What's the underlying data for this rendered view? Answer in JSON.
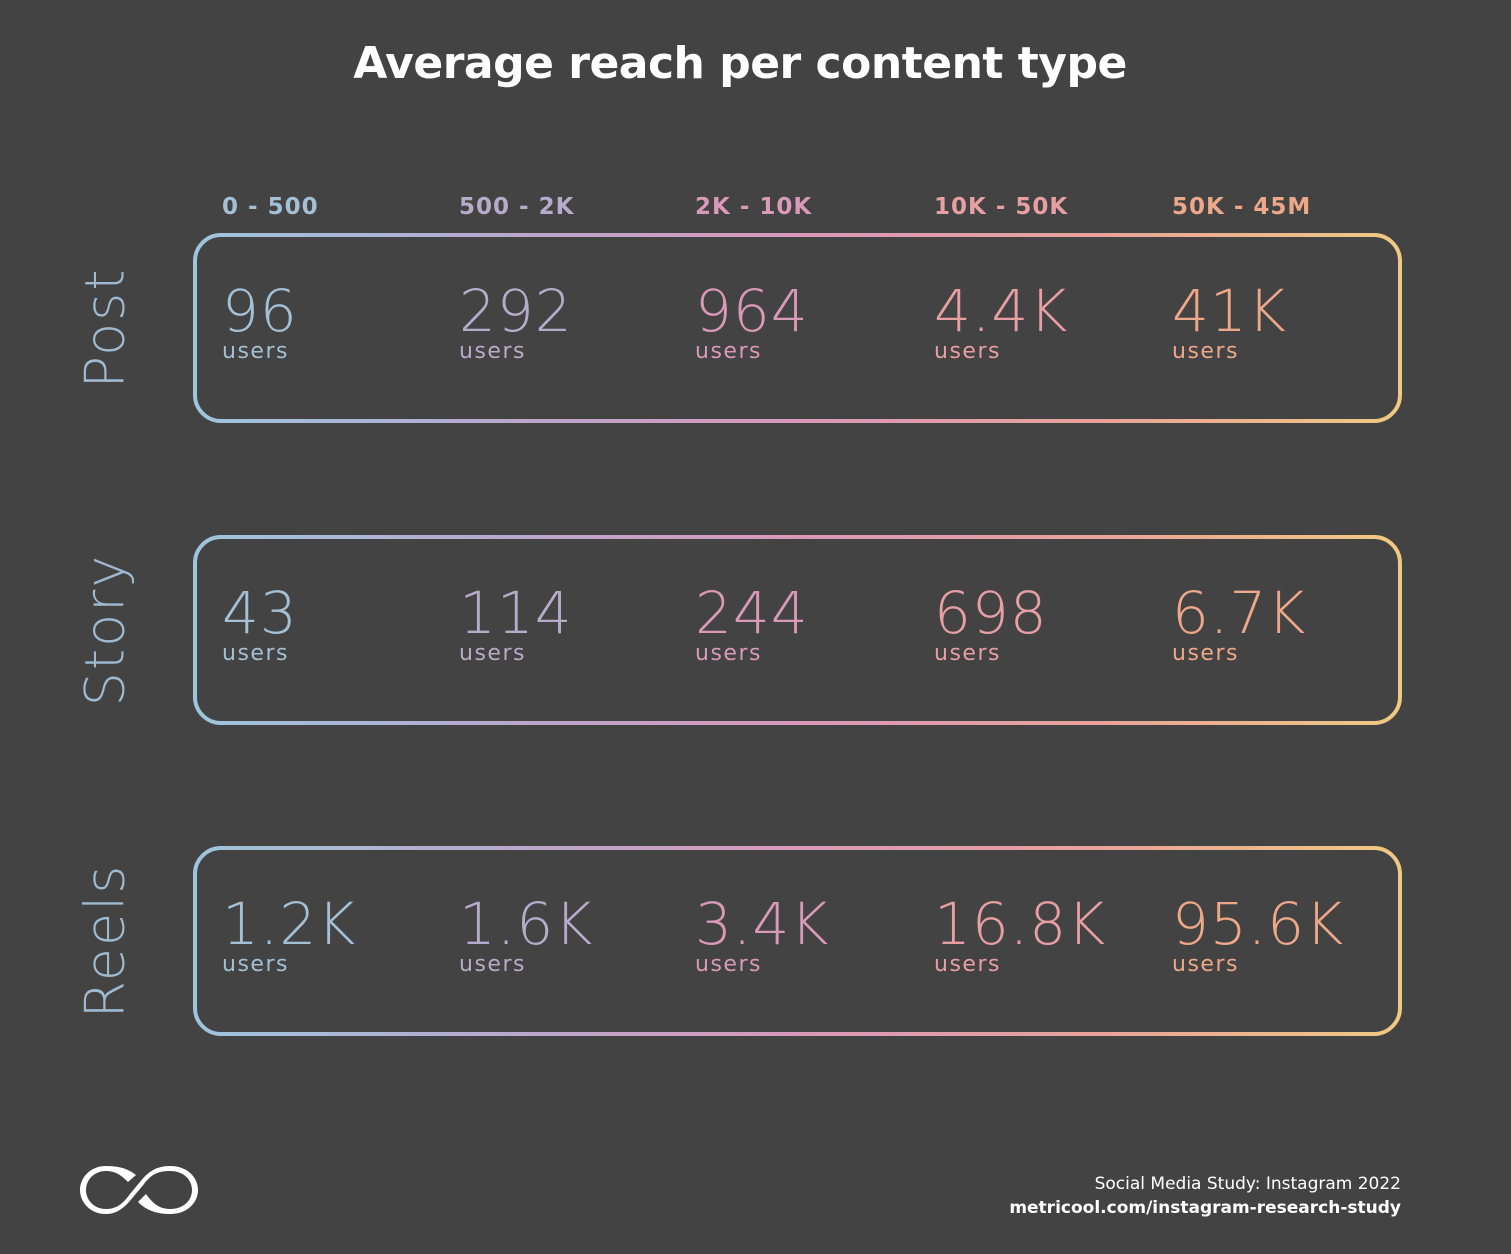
{
  "title": "Average reach per content type",
  "colors": {
    "background": "#434343",
    "gradient": [
      "#9ec5dd",
      "#b7a9cf",
      "#d998ba",
      "#e9a29a",
      "#f0c981"
    ],
    "row_label": "#9fbad0"
  },
  "chart_data": {
    "type": "table",
    "title": "Average reach per content type",
    "columns": [
      "0 - 500",
      "500 - 2K",
      "2K - 10K",
      "10K - 50K",
      "50K - 45M"
    ],
    "column_colors": [
      "#a3c0d4",
      "#b6acca",
      "#d999b9",
      "#e79fa3",
      "#eca888"
    ],
    "unit": "users",
    "rows": [
      {
        "label": "Post",
        "values": [
          "96",
          "292",
          "964",
          "4.4K",
          "41K"
        ]
      },
      {
        "label": "Story",
        "values": [
          "43",
          "114",
          "244",
          "698",
          "6.7K"
        ]
      },
      {
        "label": "Reels",
        "values": [
          "1.2K",
          "1.6K",
          "3.4K",
          "16.8K",
          "95.6K"
        ]
      }
    ]
  },
  "footer": {
    "source_line1": "Social Media Study: Instagram 2022",
    "source_line2": "metricool.com/instagram-research-study",
    "logo_icon": "metricool-infinity-logo-icon"
  }
}
